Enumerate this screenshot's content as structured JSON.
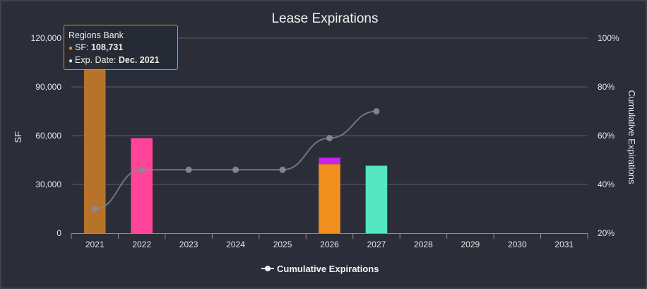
{
  "chart_data": {
    "type": "bar",
    "title": "Lease Expirations",
    "categories": [
      "2021",
      "2022",
      "2023",
      "2024",
      "2025",
      "2026",
      "2027",
      "2028",
      "2029",
      "2030",
      "2031"
    ],
    "ylabel": "SF",
    "ylabel_right": "Cumulative Expirations",
    "ylim": [
      0,
      120000
    ],
    "y_ticks": [
      "0",
      "30,000",
      "60,000",
      "90,000",
      "120,000"
    ],
    "y_tick_values": [
      0,
      30000,
      60000,
      90000,
      120000
    ],
    "y2lim": [
      20,
      100
    ],
    "y2_ticks": [
      "20%",
      "40%",
      "60%",
      "80%",
      "100%"
    ],
    "y2_tick_values": [
      20,
      40,
      60,
      80,
      100
    ],
    "grid": true,
    "legend_position": "bottom-center",
    "stacks": [
      {
        "category": "2021",
        "segments": [
          {
            "value": 108731,
            "color": "#b8732a"
          }
        ]
      },
      {
        "category": "2022",
        "segments": [
          {
            "value": 58500,
            "color": "#ff4499"
          }
        ]
      },
      {
        "category": "2026",
        "segments": [
          {
            "value": 42500,
            "color": "#f0901f"
          },
          {
            "value": 4000,
            "color": "#cc22ee"
          }
        ]
      },
      {
        "category": "2027",
        "segments": [
          {
            "value": 41500,
            "color": "#55e6c2"
          }
        ]
      }
    ],
    "series": [
      {
        "name": "Cumulative Expirations",
        "axis": "right",
        "color": "#8a8d94",
        "points": [
          {
            "x": "2021",
            "y": 30
          },
          {
            "x": "2022",
            "y": 46
          },
          {
            "x": "2023",
            "y": 46
          },
          {
            "x": "2024",
            "y": 46
          },
          {
            "x": "2025",
            "y": 46
          },
          {
            "x": "2026",
            "y": 59
          },
          {
            "x": "2027",
            "y": 70
          }
        ]
      }
    ],
    "tooltip": {
      "title": "Regions Bank",
      "sf_label": "SF: ",
      "sf_value": "108,731",
      "date_label": "Exp. Date: ",
      "date_value": "Dec. 2021",
      "sf_dot_color": "#f0901f",
      "date_dot_color": "#e6e6e6"
    }
  }
}
